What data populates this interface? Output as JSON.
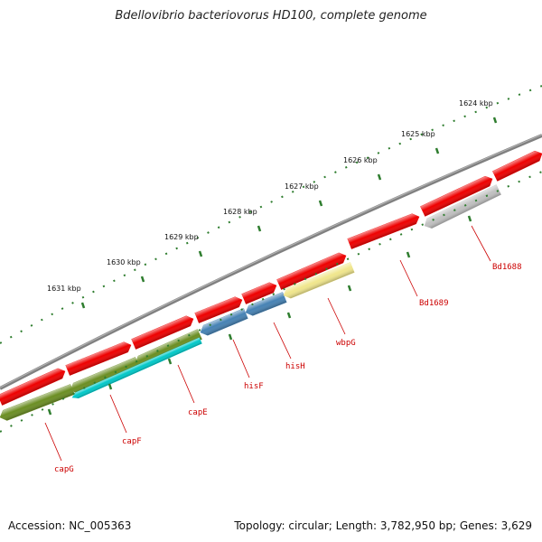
{
  "title": "Bdellovibrio bacteriovorus HD100, complete genome",
  "accession": "Accession: NC_005363",
  "summary": "Topology: circular; Length: 3,782,950 bp; Genes: 3,629",
  "colors": {
    "backbone": "#808080",
    "ticks": "#2e7d2e",
    "red_cds": "#ee0000",
    "capG": "#6b8e23",
    "capE": "#00c8c8",
    "his": "#4682b4",
    "wbpG": "#f0e68c",
    "Bd1688": "#c0c0c0",
    "label": "#cc0000"
  },
  "kbp_ticks": [
    {
      "label": "1624 kbp"
    },
    {
      "label": "1625 kbp"
    },
    {
      "label": "1626 kbp"
    },
    {
      "label": "1627 kbp"
    },
    {
      "label": "1628 kbp"
    },
    {
      "label": "1629 kbp"
    },
    {
      "label": "1630 kbp"
    },
    {
      "label": "1631 kbp"
    }
  ],
  "gene_labels": [
    {
      "name": "capG"
    },
    {
      "name": "capF"
    },
    {
      "name": "capE"
    },
    {
      "name": "hisF"
    },
    {
      "name": "hisH"
    },
    {
      "name": "wbpG"
    },
    {
      "name": "Bd1689"
    },
    {
      "name": "Bd1688"
    }
  ]
}
